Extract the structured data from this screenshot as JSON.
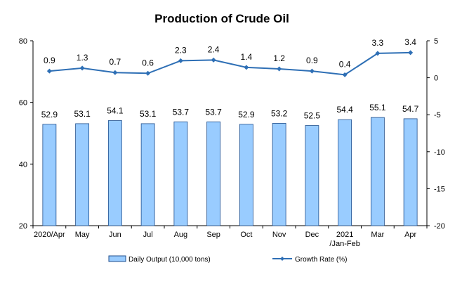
{
  "chart_data": {
    "type": "bar",
    "title": "Production of Crude Oil",
    "categories": [
      [
        "2020/Apr"
      ],
      [
        "May"
      ],
      [
        "Jun"
      ],
      [
        "Jul"
      ],
      [
        "Aug"
      ],
      [
        "Sep"
      ],
      [
        "Oct"
      ],
      [
        "Nov"
      ],
      [
        "Dec"
      ],
      [
        "2021",
        "/Jan-Feb"
      ],
      [
        "Mar"
      ],
      [
        "Apr"
      ]
    ],
    "series": [
      {
        "name": "Daily Output (10,000 tons)",
        "type": "bar",
        "axis": "left",
        "values": [
          52.9,
          53.1,
          54.1,
          53.1,
          53.7,
          53.7,
          52.9,
          53.2,
          52.5,
          54.4,
          55.1,
          54.7
        ],
        "labels": [
          "52.9",
          "53.1",
          "54.1",
          "53.1",
          "53.7",
          "53.7",
          "52.9",
          "53.2",
          "52.5",
          "54.4",
          "55.1",
          "54.7"
        ]
      },
      {
        "name": "Growth Rate (%)",
        "type": "line",
        "axis": "right",
        "values": [
          0.9,
          1.3,
          0.7,
          0.6,
          2.3,
          2.4,
          1.4,
          1.2,
          0.9,
          0.4,
          3.3,
          3.4
        ],
        "labels": [
          "0.9",
          "1.3",
          "0.7",
          "0.6",
          "2.3",
          "2.4",
          "1.4",
          "1.2",
          "0.9",
          "0.4",
          "3.3",
          "3.4"
        ]
      }
    ],
    "y_left": {
      "range": [
        20,
        80
      ],
      "ticks": [
        20,
        40,
        60,
        80
      ]
    },
    "y_right": {
      "range": [
        -20,
        5
      ],
      "ticks": [
        5,
        0,
        -5,
        -10,
        -15,
        -20
      ]
    },
    "grid": false,
    "legend_position": "bottom",
    "colors": {
      "bar_fill": "#99ccff",
      "bar_stroke": "#1f4e8c",
      "line": "#2e6fb5",
      "axis": "#000000"
    }
  }
}
